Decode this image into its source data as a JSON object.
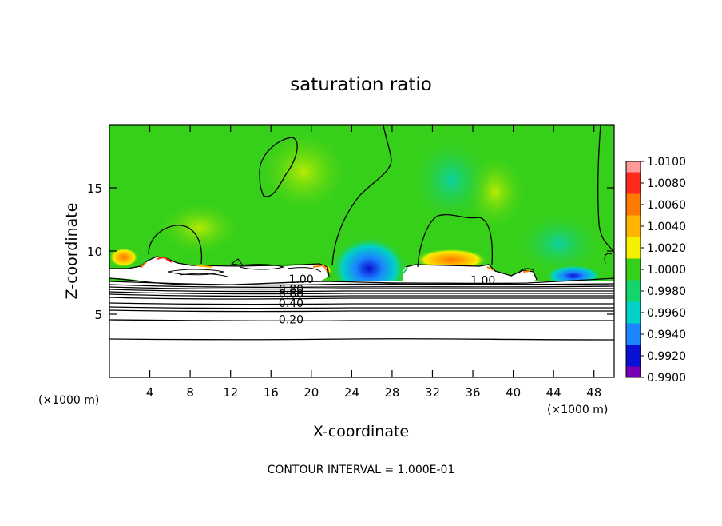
{
  "chart_data": {
    "type": "heatmap",
    "title": "saturation ratio",
    "xlabel": "X-coordinate",
    "ylabel": "Z-coordinate",
    "x_unit_left": "(×1000 m)",
    "x_unit_right": "(×1000 m)",
    "xlim": [
      0,
      50
    ],
    "ylim": [
      0,
      20
    ],
    "xticks": [
      4,
      8,
      12,
      16,
      20,
      24,
      28,
      32,
      36,
      40,
      44,
      48
    ],
    "xtick_labels": [
      "4",
      "8",
      "12",
      "16",
      "20",
      "24",
      "28",
      "32",
      "36",
      "40",
      "44",
      "48"
    ],
    "yticks": [
      5,
      10,
      15
    ],
    "ytick_labels": [
      "5",
      "10",
      "15"
    ],
    "footer": "CONTOUR INTERVAL = 1.000E-01",
    "colorbar": {
      "min": 0.99,
      "max": 1.01,
      "labels": [
        "1.0100",
        "1.0080",
        "1.0060",
        "1.0040",
        "1.0020",
        "1.0000",
        "0.9980",
        "0.9960",
        "0.9940",
        "0.9920",
        "0.9900"
      ],
      "colors": [
        "#ff9a9a",
        "#ff2a1a",
        "#ff7a00",
        "#ffb400",
        "#f5f000",
        "#36d01a",
        "#14d46e",
        "#00d2c6",
        "#1a86ff",
        "#0a10d0",
        "#7800b4"
      ]
    },
    "contour_labels": [
      {
        "text": "1.00",
        "x": 19.0,
        "z": 7.8
      },
      {
        "text": "0.80",
        "x": 18.0,
        "z": 7.0
      },
      {
        "text": "0.60",
        "x": 18.0,
        "z": 6.6
      },
      {
        "text": "0.40",
        "x": 18.0,
        "z": 5.9
      },
      {
        "text": "0.20",
        "x": 18.0,
        "z": 4.6
      },
      {
        "text": "1.00",
        "x": 37.0,
        "z": 7.7
      }
    ],
    "saturated_layer_top_z": 8.0,
    "subsaturated_contour_z": [
      3.1,
      4.7,
      5.3,
      5.6,
      5.9,
      6.2,
      6.5,
      6.8,
      7.1,
      7.4
    ]
  }
}
